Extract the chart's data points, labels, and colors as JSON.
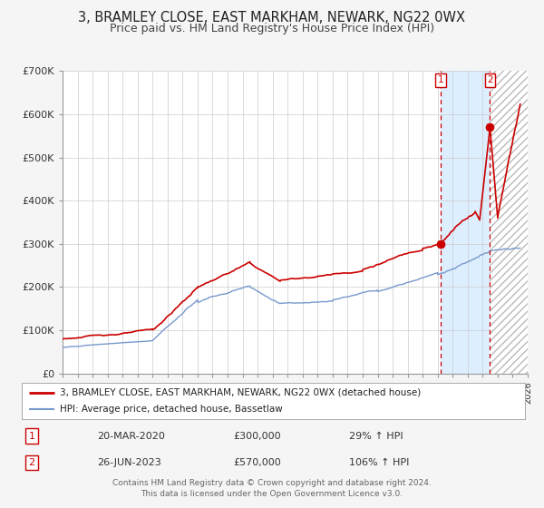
{
  "title": "3, BRAMLEY CLOSE, EAST MARKHAM, NEWARK, NG22 0WX",
  "subtitle": "Price paid vs. HM Land Registry's House Price Index (HPI)",
  "xlim": [
    1995.0,
    2026.0
  ],
  "ylim": [
    0,
    700000
  ],
  "yticks": [
    0,
    100000,
    200000,
    300000,
    400000,
    500000,
    600000,
    700000
  ],
  "ytick_labels": [
    "£0",
    "£100K",
    "£200K",
    "£300K",
    "£400K",
    "£500K",
    "£600K",
    "£700K"
  ],
  "red_color": "#cc0000",
  "blue_color": "#7799cc",
  "background_color": "#f5f5f5",
  "plot_bg": "#ffffff",
  "shade_color": "#ddeeff",
  "marker1_x": 2020.22,
  "marker1_y": 300000,
  "marker2_x": 2023.49,
  "marker2_y": 570000,
  "vline1_x": 2020.22,
  "vline2_x": 2023.49,
  "legend_red_label": "3, BRAMLEY CLOSE, EAST MARKHAM, NEWARK, NG22 0WX (detached house)",
  "legend_blue_label": "HPI: Average price, detached house, Bassetlaw",
  "table_row1": [
    "1",
    "20-MAR-2020",
    "£300,000",
    "29% ↑ HPI"
  ],
  "table_row2": [
    "2",
    "26-JUN-2023",
    "£570,000",
    "106% ↑ HPI"
  ],
  "footer": "Contains HM Land Registry data © Crown copyright and database right 2024.\nThis data is licensed under the Open Government Licence v3.0.",
  "title_fontsize": 10.5,
  "subtitle_fontsize": 9
}
